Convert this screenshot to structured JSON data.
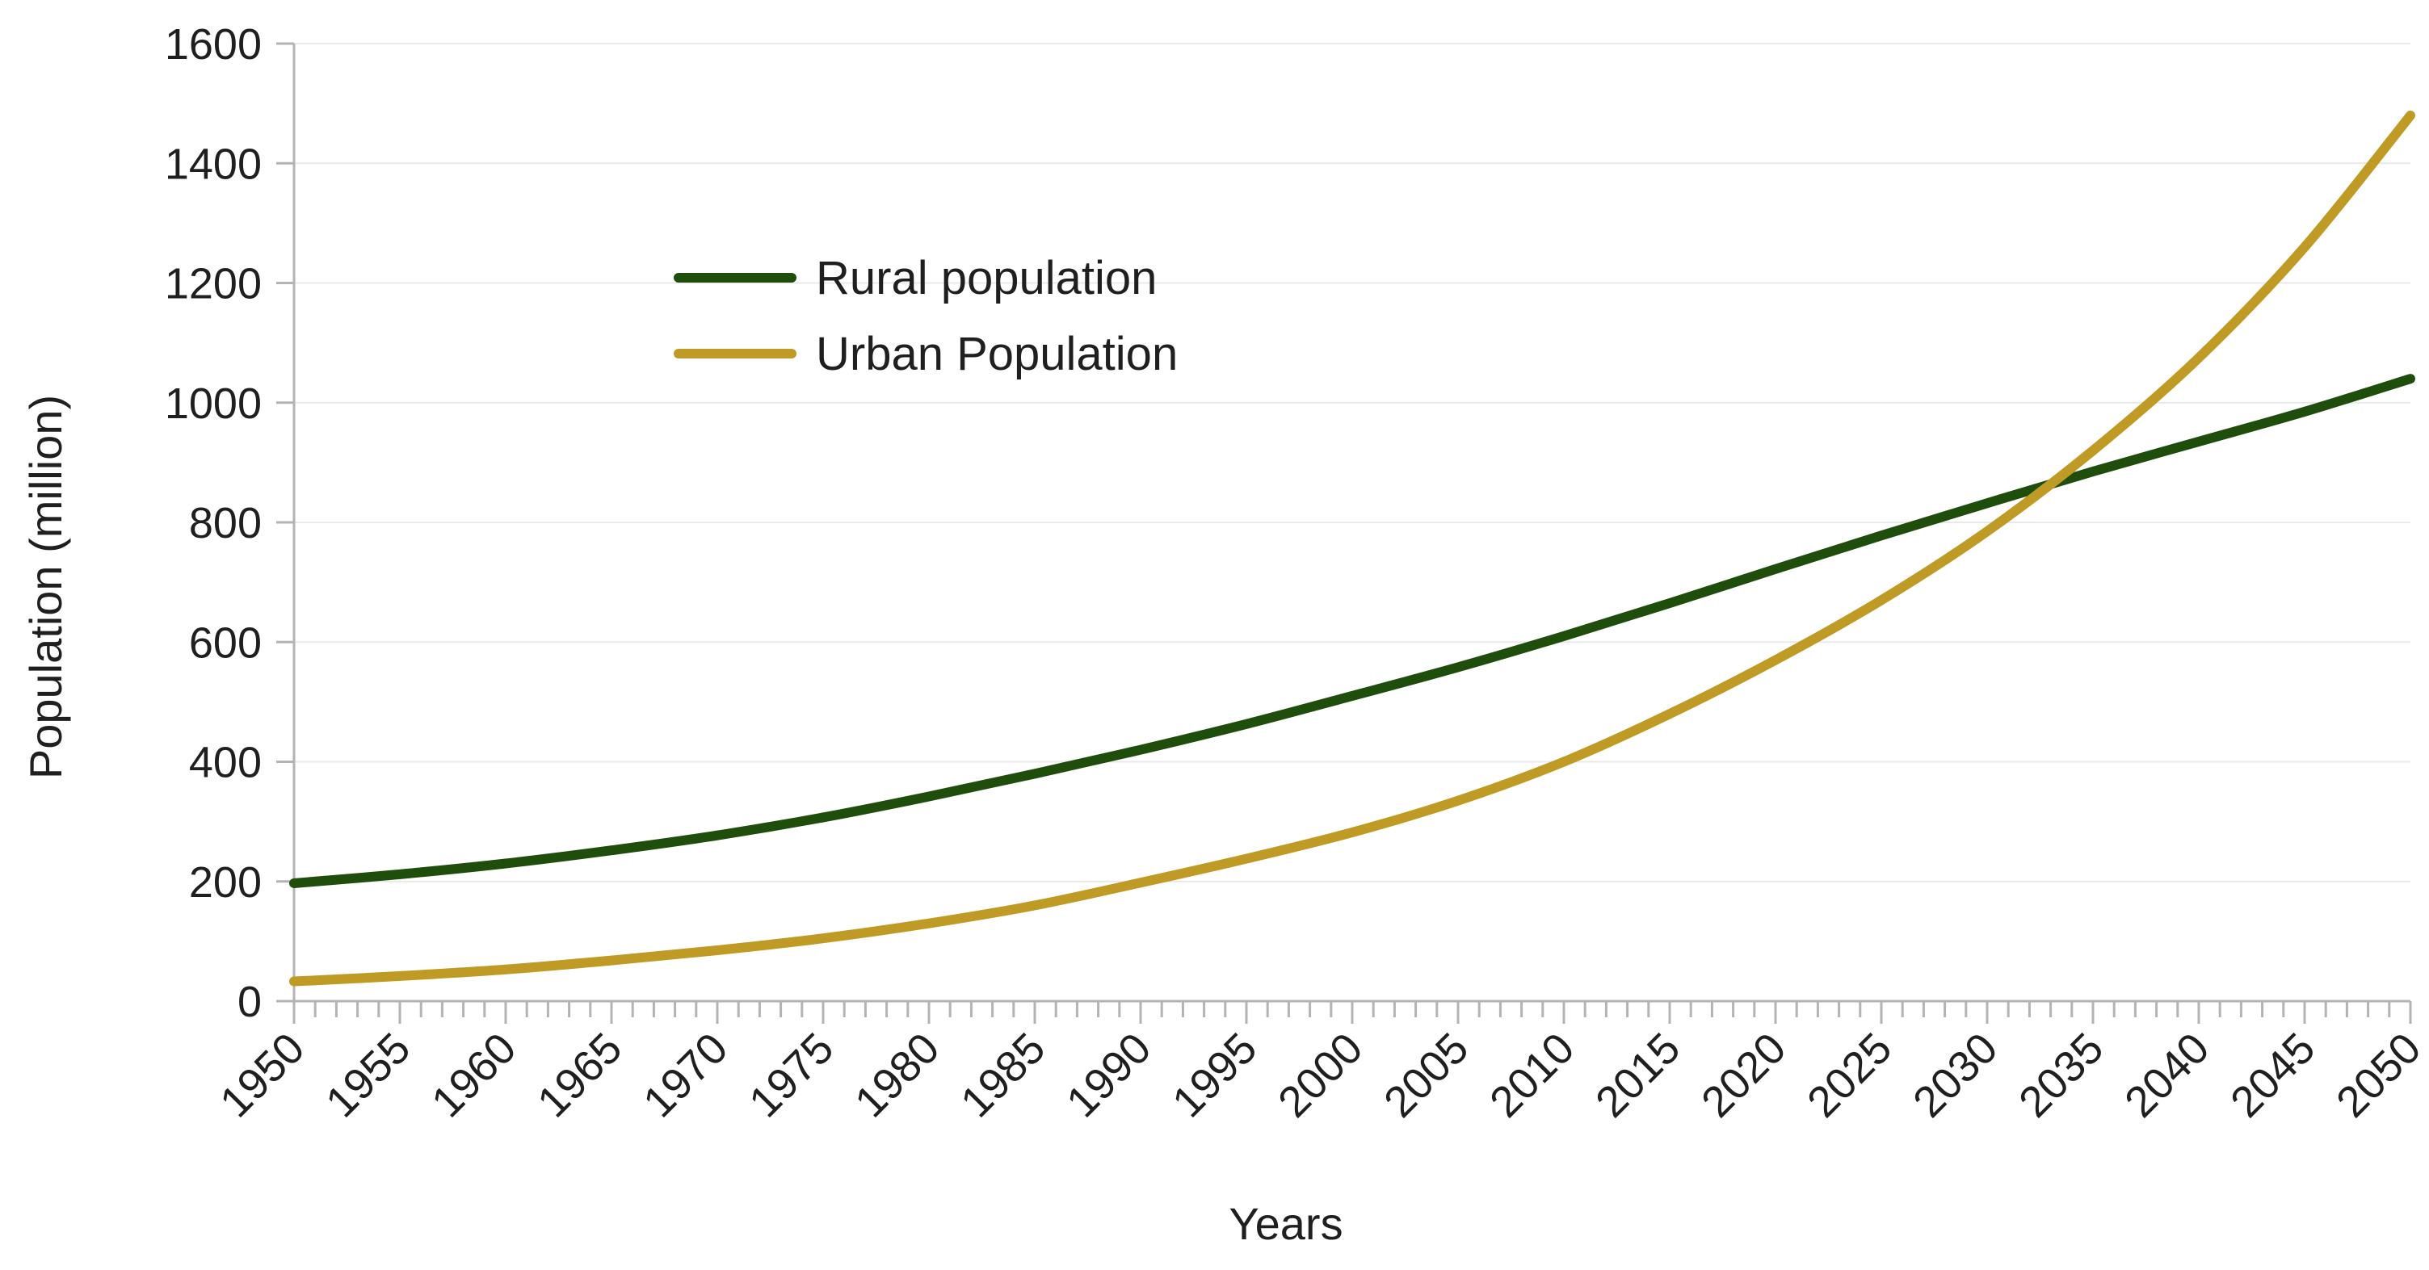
{
  "chart_data": {
    "type": "line",
    "title": "",
    "xlabel": "Years",
    "ylabel": "Population (million)",
    "xlim": [
      1950,
      2050
    ],
    "ylim": [
      0,
      1600
    ],
    "y_ticks": [
      0,
      200,
      400,
      600,
      800,
      1000,
      1200,
      1400,
      1600
    ],
    "x_ticks": [
      1950,
      1955,
      1960,
      1965,
      1970,
      1975,
      1980,
      1985,
      1990,
      1995,
      2000,
      2005,
      2010,
      2015,
      2020,
      2025,
      2030,
      2035,
      2040,
      2045,
      2050
    ],
    "x_minor_step": 1,
    "grid": "horizontal",
    "legend_position": "top-left",
    "x": [
      1950,
      1955,
      1960,
      1965,
      1970,
      1975,
      1980,
      1985,
      1990,
      1995,
      2000,
      2005,
      2010,
      2015,
      2020,
      2025,
      2030,
      2035,
      2040,
      2045,
      2050
    ],
    "series": [
      {
        "name": "Rural population",
        "color": "#1e4d0c",
        "values": [
          197,
          212,
          230,
          252,
          277,
          307,
          342,
          380,
          420,
          463,
          510,
          558,
          610,
          665,
          722,
          778,
          832,
          885,
          935,
          985,
          1040
        ]
      },
      {
        "name": "Urban Population",
        "color": "#bf9a24",
        "values": [
          33,
          42,
          53,
          68,
          85,
          105,
          130,
          160,
          198,
          238,
          282,
          335,
          400,
          480,
          570,
          670,
          785,
          920,
          1075,
          1260,
          1480
        ]
      }
    ]
  }
}
